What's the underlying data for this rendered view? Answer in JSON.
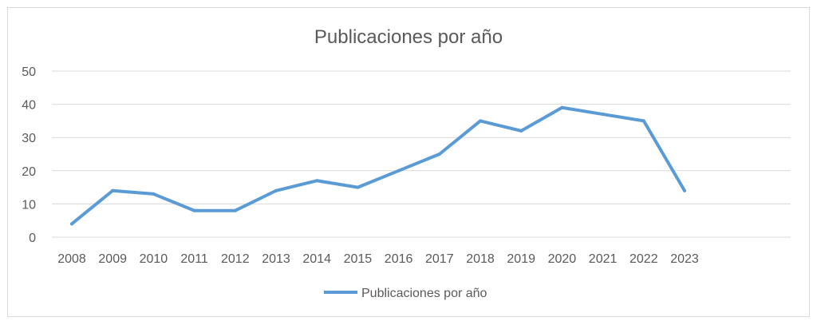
{
  "chart_data": {
    "type": "line",
    "title": "Publicaciones por año",
    "xlabel": "",
    "ylabel": "",
    "categories": [
      "2008",
      "2009",
      "2010",
      "2011",
      "2012",
      "2013",
      "2014",
      "2015",
      "2016",
      "2017",
      "2018",
      "2019",
      "2020",
      "2021",
      "2022",
      "2023"
    ],
    "series": [
      {
        "name": "Publicaciones por año",
        "values": [
          4,
          14,
          13,
          8,
          8,
          14,
          17,
          15,
          20,
          25,
          35,
          32,
          39,
          37,
          35,
          14
        ]
      }
    ],
    "ylim": [
      0,
      50
    ],
    "yticks": [
      "0",
      "10",
      "20",
      "30",
      "40",
      "50"
    ],
    "grid": true,
    "legend_position": "bottom",
    "colors": {
      "series": "#5b9bd5",
      "grid": "#d9d9d9",
      "text": "#595959"
    }
  }
}
